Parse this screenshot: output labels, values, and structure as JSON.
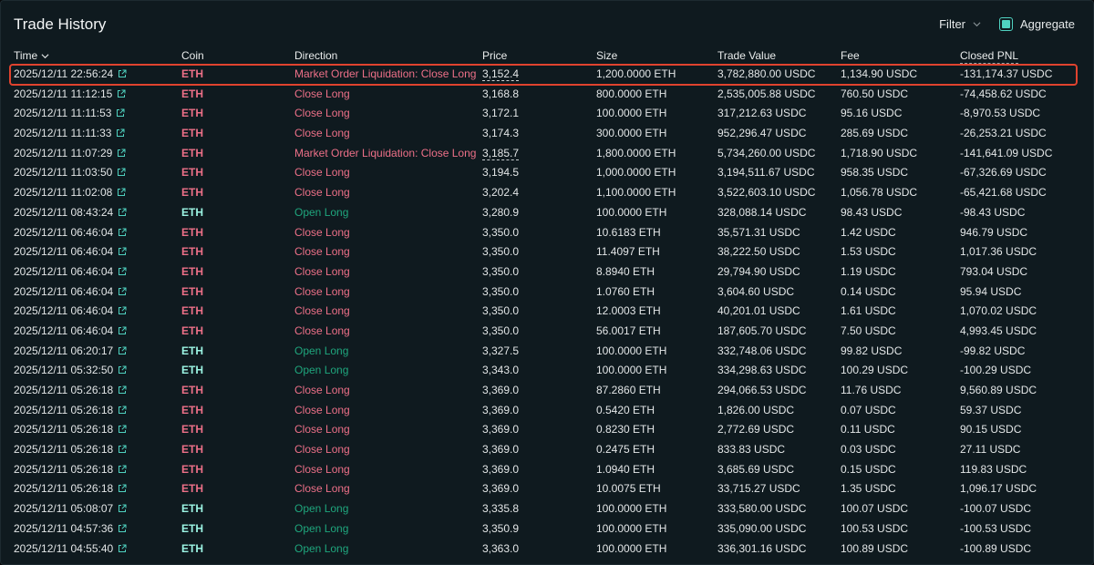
{
  "title": "Trade History",
  "controls": {
    "filter_label": "Filter",
    "aggregate_label": "Aggregate",
    "aggregate_checked": true
  },
  "columns": [
    "Time",
    "Coin",
    "Direction",
    "Price",
    "Size",
    "Trade Value",
    "Fee",
    "Closed PNL"
  ],
  "colors": {
    "accent": "#50d2c1",
    "close": "#ed7088",
    "open": "#1fa67d",
    "highlight": "#e0432e"
  },
  "rows": [
    {
      "time": "2025/12/11 22:56:24",
      "coin": "ETH",
      "direction": "Market Order Liquidation: Close Long",
      "price": "3,152.4",
      "size": "1,200.0000 ETH",
      "trade_value": "3,782,880.00 USDC",
      "fee": "1,134.90 USDC",
      "pnl": "-131,174.37 USDC",
      "kind": "close",
      "liq": true
    },
    {
      "time": "2025/12/11 11:12:15",
      "coin": "ETH",
      "direction": "Close Long",
      "price": "3,168.8",
      "size": "800.0000 ETH",
      "trade_value": "2,535,005.88 USDC",
      "fee": "760.50 USDC",
      "pnl": "-74,458.62 USDC",
      "kind": "close"
    },
    {
      "time": "2025/12/11 11:11:53",
      "coin": "ETH",
      "direction": "Close Long",
      "price": "3,172.1",
      "size": "100.0000 ETH",
      "trade_value": "317,212.63 USDC",
      "fee": "95.16 USDC",
      "pnl": "-8,970.53 USDC",
      "kind": "close"
    },
    {
      "time": "2025/12/11 11:11:33",
      "coin": "ETH",
      "direction": "Close Long",
      "price": "3,174.3",
      "size": "300.0000 ETH",
      "trade_value": "952,296.47 USDC",
      "fee": "285.69 USDC",
      "pnl": "-26,253.21 USDC",
      "kind": "close"
    },
    {
      "time": "2025/12/11 11:07:29",
      "coin": "ETH",
      "direction": "Market Order Liquidation: Close Long",
      "price": "3,185.7",
      "size": "1,800.0000 ETH",
      "trade_value": "5,734,260.00 USDC",
      "fee": "1,718.90 USDC",
      "pnl": "-141,641.09 USDC",
      "kind": "close",
      "liq": true
    },
    {
      "time": "2025/12/11 11:03:50",
      "coin": "ETH",
      "direction": "Close Long",
      "price": "3,194.5",
      "size": "1,000.0000 ETH",
      "trade_value": "3,194,511.67 USDC",
      "fee": "958.35 USDC",
      "pnl": "-67,326.69 USDC",
      "kind": "close"
    },
    {
      "time": "2025/12/11 11:02:08",
      "coin": "ETH",
      "direction": "Close Long",
      "price": "3,202.4",
      "size": "1,100.0000 ETH",
      "trade_value": "3,522,603.10 USDC",
      "fee": "1,056.78 USDC",
      "pnl": "-65,421.68 USDC",
      "kind": "close"
    },
    {
      "time": "2025/12/11 08:43:24",
      "coin": "ETH",
      "direction": "Open Long",
      "price": "3,280.9",
      "size": "100.0000 ETH",
      "trade_value": "328,088.14 USDC",
      "fee": "98.43 USDC",
      "pnl": "-98.43 USDC",
      "kind": "open"
    },
    {
      "time": "2025/12/11 06:46:04",
      "coin": "ETH",
      "direction": "Close Long",
      "price": "3,350.0",
      "size": "10.6183 ETH",
      "trade_value": "35,571.31 USDC",
      "fee": "1.42 USDC",
      "pnl": "946.79 USDC",
      "kind": "close"
    },
    {
      "time": "2025/12/11 06:46:04",
      "coin": "ETH",
      "direction": "Close Long",
      "price": "3,350.0",
      "size": "11.4097 ETH",
      "trade_value": "38,222.50 USDC",
      "fee": "1.53 USDC",
      "pnl": "1,017.36 USDC",
      "kind": "close"
    },
    {
      "time": "2025/12/11 06:46:04",
      "coin": "ETH",
      "direction": "Close Long",
      "price": "3,350.0",
      "size": "8.8940 ETH",
      "trade_value": "29,794.90 USDC",
      "fee": "1.19 USDC",
      "pnl": "793.04 USDC",
      "kind": "close"
    },
    {
      "time": "2025/12/11 06:46:04",
      "coin": "ETH",
      "direction": "Close Long",
      "price": "3,350.0",
      "size": "1.0760 ETH",
      "trade_value": "3,604.60 USDC",
      "fee": "0.14 USDC",
      "pnl": "95.94 USDC",
      "kind": "close"
    },
    {
      "time": "2025/12/11 06:46:04",
      "coin": "ETH",
      "direction": "Close Long",
      "price": "3,350.0",
      "size": "12.0003 ETH",
      "trade_value": "40,201.01 USDC",
      "fee": "1.61 USDC",
      "pnl": "1,070.02 USDC",
      "kind": "close"
    },
    {
      "time": "2025/12/11 06:46:04",
      "coin": "ETH",
      "direction": "Close Long",
      "price": "3,350.0",
      "size": "56.0017 ETH",
      "trade_value": "187,605.70 USDC",
      "fee": "7.50 USDC",
      "pnl": "4,993.45 USDC",
      "kind": "close"
    },
    {
      "time": "2025/12/11 06:20:17",
      "coin": "ETH",
      "direction": "Open Long",
      "price": "3,327.5",
      "size": "100.0000 ETH",
      "trade_value": "332,748.06 USDC",
      "fee": "99.82 USDC",
      "pnl": "-99.82 USDC",
      "kind": "open"
    },
    {
      "time": "2025/12/11 05:32:50",
      "coin": "ETH",
      "direction": "Open Long",
      "price": "3,343.0",
      "size": "100.0000 ETH",
      "trade_value": "334,298.63 USDC",
      "fee": "100.29 USDC",
      "pnl": "-100.29 USDC",
      "kind": "open"
    },
    {
      "time": "2025/12/11 05:26:18",
      "coin": "ETH",
      "direction": "Close Long",
      "price": "3,369.0",
      "size": "87.2860 ETH",
      "trade_value": "294,066.53 USDC",
      "fee": "11.76 USDC",
      "pnl": "9,560.89 USDC",
      "kind": "close"
    },
    {
      "time": "2025/12/11 05:26:18",
      "coin": "ETH",
      "direction": "Close Long",
      "price": "3,369.0",
      "size": "0.5420 ETH",
      "trade_value": "1,826.00 USDC",
      "fee": "0.07 USDC",
      "pnl": "59.37 USDC",
      "kind": "close"
    },
    {
      "time": "2025/12/11 05:26:18",
      "coin": "ETH",
      "direction": "Close Long",
      "price": "3,369.0",
      "size": "0.8230 ETH",
      "trade_value": "2,772.69 USDC",
      "fee": "0.11 USDC",
      "pnl": "90.15 USDC",
      "kind": "close"
    },
    {
      "time": "2025/12/11 05:26:18",
      "coin": "ETH",
      "direction": "Close Long",
      "price": "3,369.0",
      "size": "0.2475 ETH",
      "trade_value": "833.83 USDC",
      "fee": "0.03 USDC",
      "pnl": "27.11 USDC",
      "kind": "close"
    },
    {
      "time": "2025/12/11 05:26:18",
      "coin": "ETH",
      "direction": "Close Long",
      "price": "3,369.0",
      "size": "1.0940 ETH",
      "trade_value": "3,685.69 USDC",
      "fee": "0.15 USDC",
      "pnl": "119.83 USDC",
      "kind": "close"
    },
    {
      "time": "2025/12/11 05:26:18",
      "coin": "ETH",
      "direction": "Close Long",
      "price": "3,369.0",
      "size": "10.0075 ETH",
      "trade_value": "33,715.27 USDC",
      "fee": "1.35 USDC",
      "pnl": "1,096.17 USDC",
      "kind": "close"
    },
    {
      "time": "2025/12/11 05:08:07",
      "coin": "ETH",
      "direction": "Open Long",
      "price": "3,335.8",
      "size": "100.0000 ETH",
      "trade_value": "333,580.00 USDC",
      "fee": "100.07 USDC",
      "pnl": "-100.07 USDC",
      "kind": "open"
    },
    {
      "time": "2025/12/11 04:57:36",
      "coin": "ETH",
      "direction": "Open Long",
      "price": "3,350.9",
      "size": "100.0000 ETH",
      "trade_value": "335,090.00 USDC",
      "fee": "100.53 USDC",
      "pnl": "-100.53 USDC",
      "kind": "open"
    },
    {
      "time": "2025/12/11 04:55:40",
      "coin": "ETH",
      "direction": "Open Long",
      "price": "3,363.0",
      "size": "100.0000 ETH",
      "trade_value": "336,301.16 USDC",
      "fee": "100.89 USDC",
      "pnl": "-100.89 USDC",
      "kind": "open"
    }
  ]
}
